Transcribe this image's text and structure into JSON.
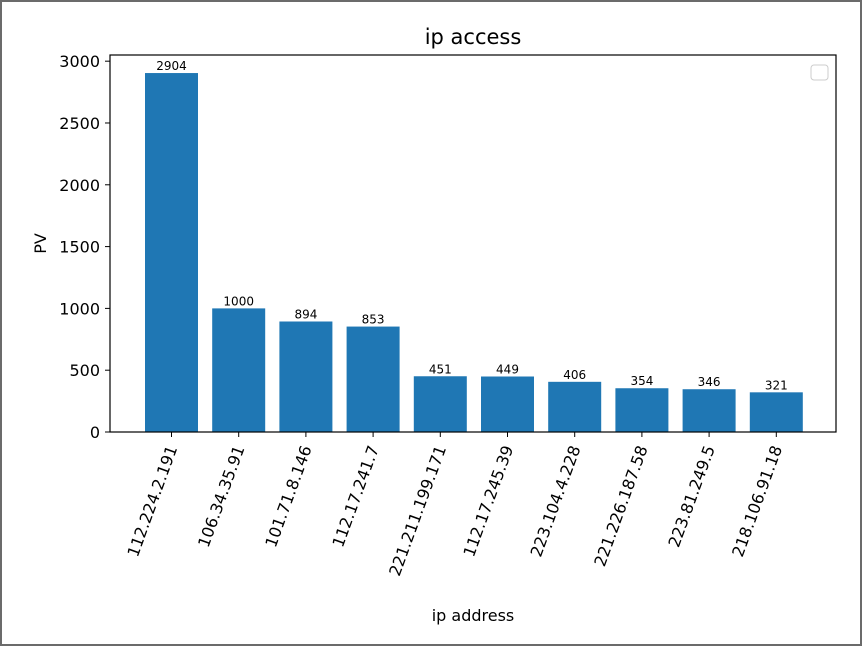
{
  "chart_data": {
    "type": "bar",
    "title": "ip access",
    "xlabel": "ip address",
    "ylabel": "PV",
    "categories": [
      "112.224.2.191",
      "106.34.35.91",
      "101.71.8.146",
      "112.17.241.7",
      "221.211.199.171",
      "112.17.245.39",
      "223.104.4.228",
      "221.226.187.58",
      "223.81.249.5",
      "218.106.91.18"
    ],
    "values": [
      2904,
      1000,
      894,
      853,
      451,
      449,
      406,
      354,
      346,
      321
    ],
    "ylim": [
      0,
      3050
    ],
    "yticks": [
      0,
      500,
      1000,
      1500,
      2000,
      2500,
      3000
    ],
    "bar_color": "#1f77b4",
    "legend_placement": "top-right",
    "grid": false
  }
}
